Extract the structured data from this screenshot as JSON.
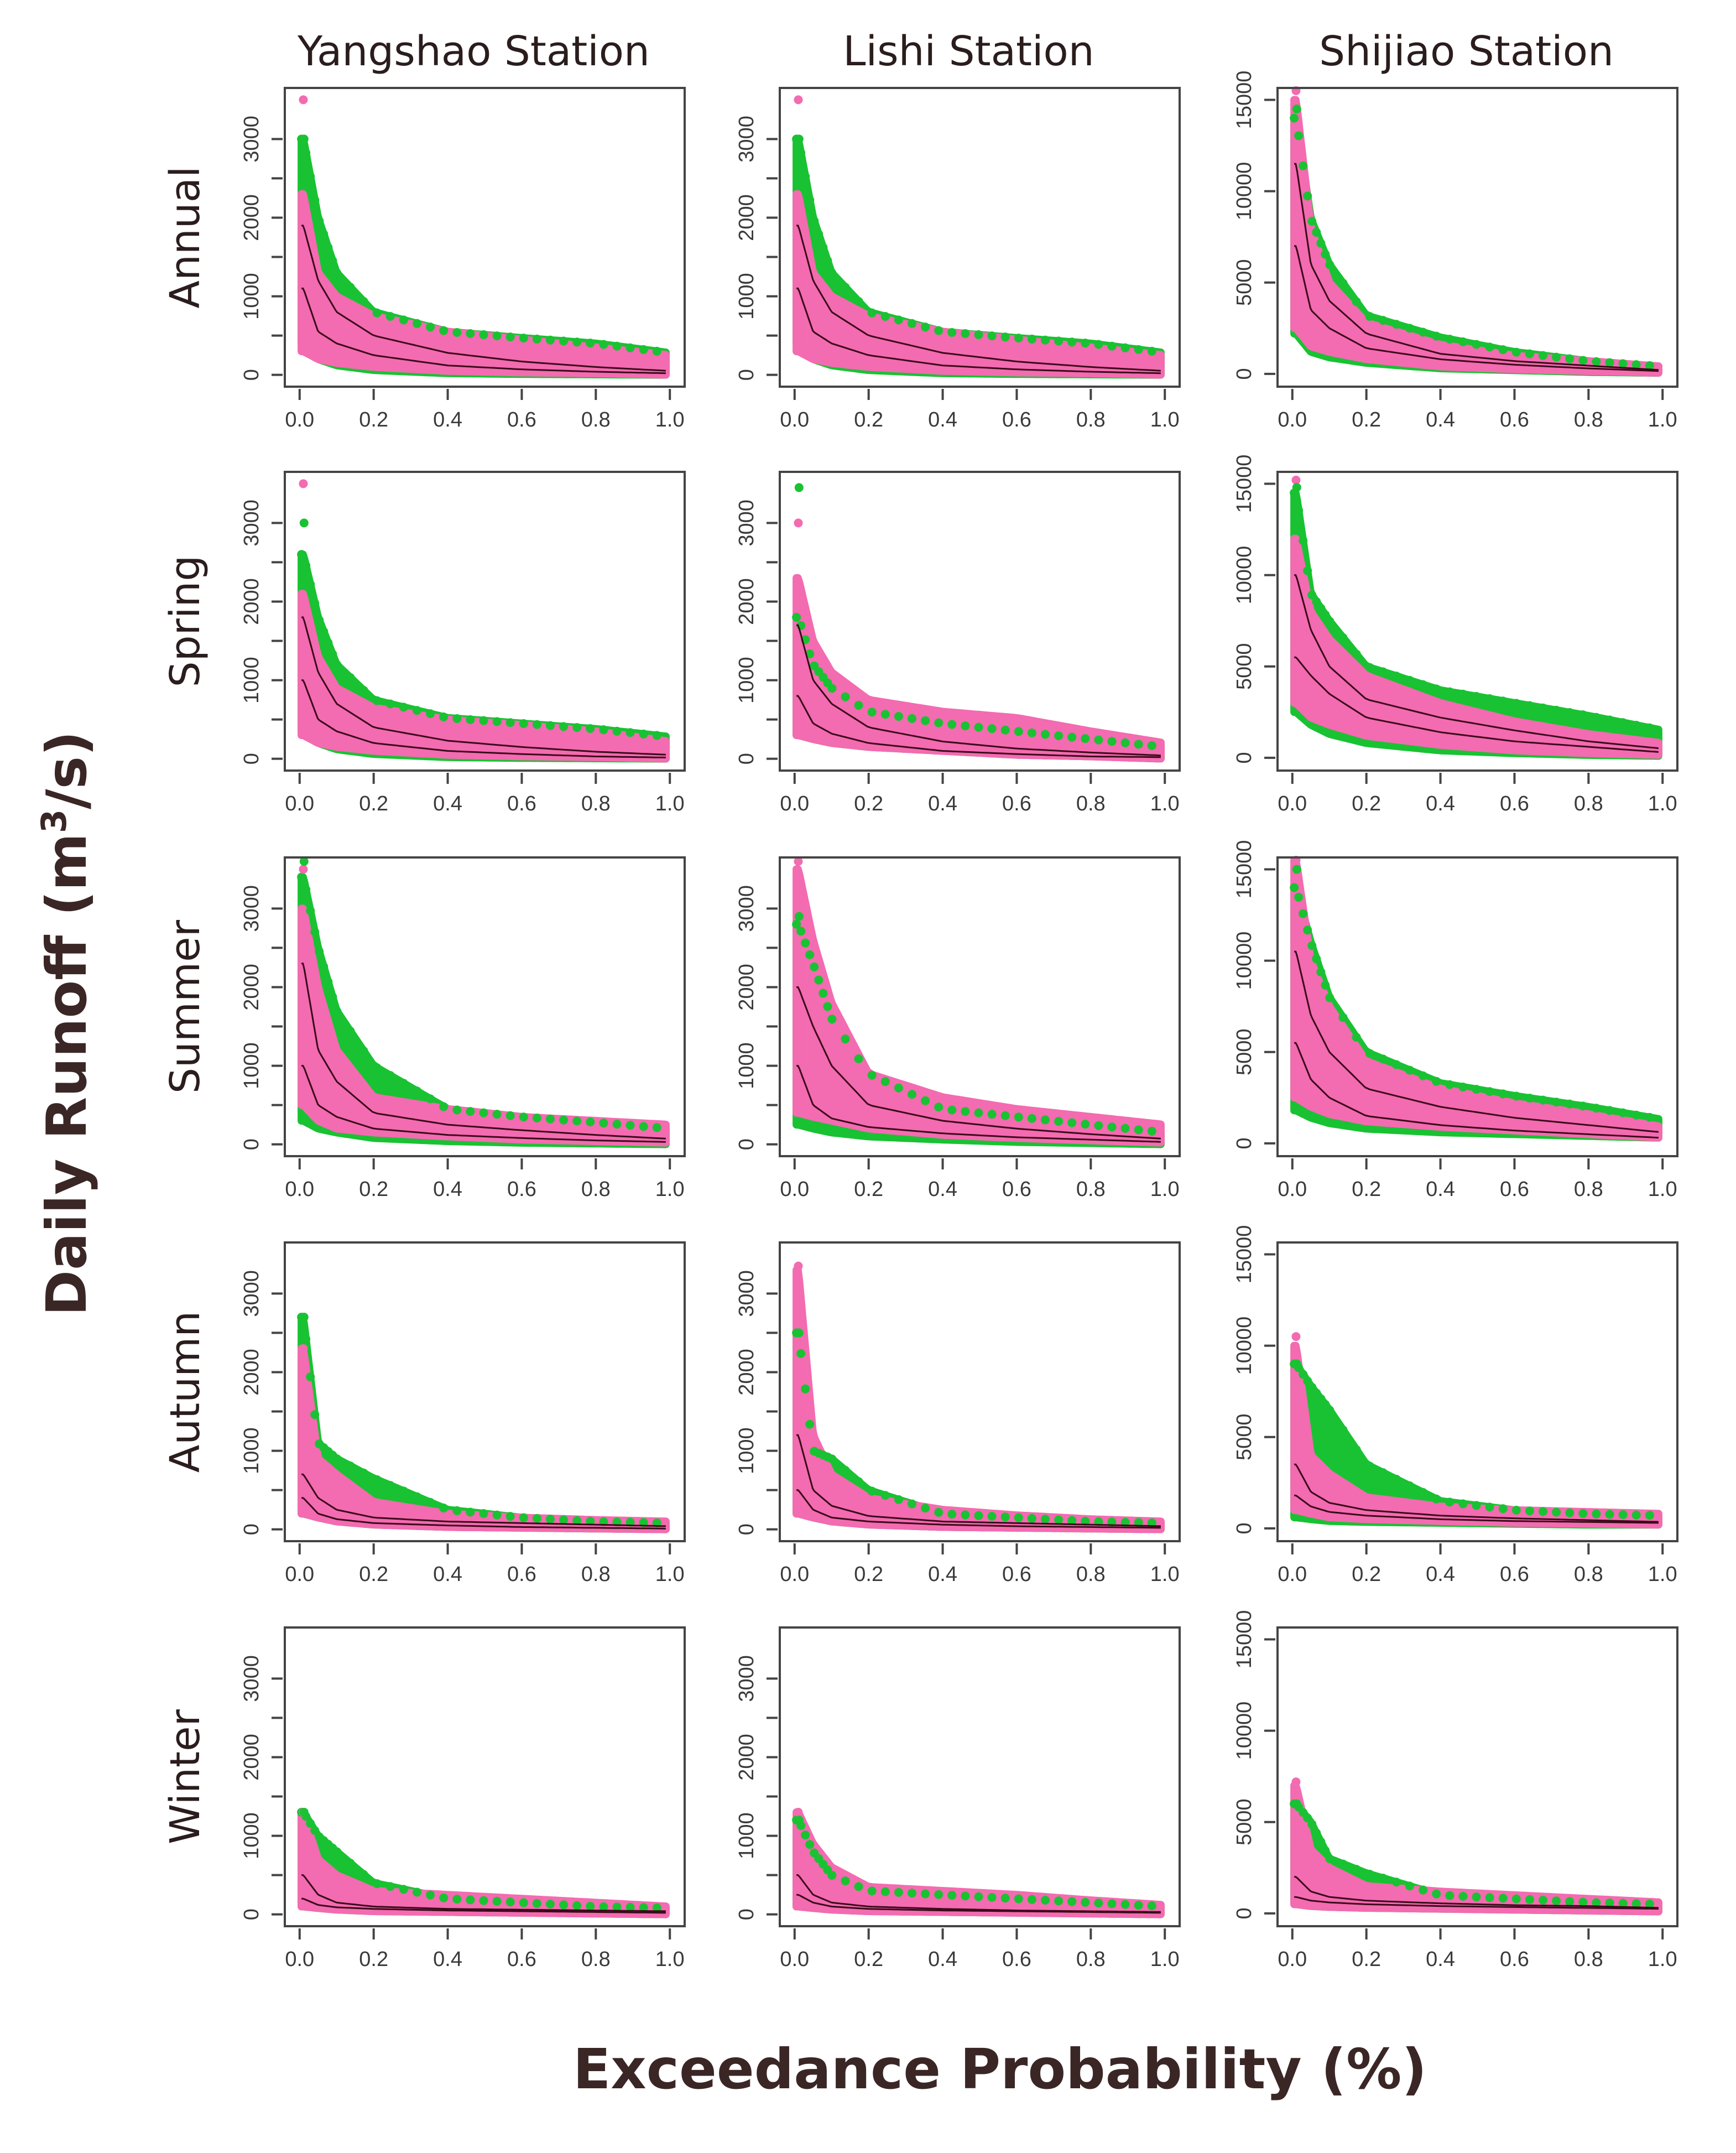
{
  "chart_data": {
    "type": "scatter",
    "xlabel": "Exceedance Probability (%)",
    "ylabel_main": "Daily Runoff (m",
    "ylabel_sup": "3",
    "ylabel_end": "/s)",
    "columns": [
      "Yangshao Station",
      "Lishi Station",
      "Shijiao Station"
    ],
    "rows": [
      "Annual",
      "Spring",
      "Summer",
      "Autumn",
      "Winter"
    ],
    "xlim": [
      -0.04,
      1.04
    ],
    "xticks": [
      "0.0",
      "0.2",
      "0.4",
      "0.6",
      "0.8",
      "1.0"
    ],
    "xtick_values": [
      0,
      0.2,
      0.4,
      0.6,
      0.8,
      1.0
    ],
    "ylims": [
      [
        -150,
        3650
      ],
      [
        -150,
        3650
      ],
      [
        -700,
        15650
      ]
    ],
    "yticks": [
      [
        "0",
        "1000",
        "2000",
        "3000"
      ],
      [
        "0",
        "1000",
        "2000",
        "3000"
      ],
      [
        "0",
        "5000",
        "10000",
        "15000"
      ]
    ],
    "ytick_values": [
      [
        0,
        1000,
        2000,
        3000
      ],
      [
        0,
        1000,
        2000,
        3000
      ],
      [
        0,
        5000,
        10000,
        15000
      ]
    ],
    "minor_ytick_values": [
      [
        500,
        1500,
        2500
      ],
      [
        500,
        1500,
        2500
      ],
      []
    ],
    "colors": {
      "green": "#19c232",
      "pink": "#f36bb0",
      "line": "#3a0a1a"
    },
    "sample_x": [
      0.01,
      0.05,
      0.1,
      0.2,
      0.4,
      0.6,
      0.8,
      1.0
    ],
    "panels": [
      [
        {
          "pink_upper": [
            2300,
            1300,
            1000,
            750,
            550,
            450,
            350,
            250
          ],
          "pink_lower": [
            300,
            200,
            150,
            100,
            50,
            30,
            20,
            0
          ],
          "green_upper": [
            3000,
            2000,
            1300,
            800,
            550,
            470,
            400,
            280
          ],
          "green_lower": [
            400,
            200,
            120,
            60,
            20,
            10,
            5,
            0
          ],
          "line_high": [
            1900,
            1200,
            800,
            500,
            280,
            170,
            100,
            50
          ],
          "line_low": [
            1100,
            550,
            400,
            250,
            120,
            70,
            40,
            20
          ],
          "peak_pink": 3500,
          "peak_green": 3000
        },
        {
          "pink_upper": [
            2300,
            1300,
            1000,
            750,
            550,
            450,
            350,
            250
          ],
          "pink_lower": [
            300,
            200,
            150,
            100,
            50,
            30,
            20,
            0
          ],
          "green_upper": [
            3000,
            2000,
            1300,
            800,
            550,
            470,
            400,
            280
          ],
          "green_lower": [
            400,
            200,
            120,
            60,
            20,
            10,
            5,
            0
          ],
          "line_high": [
            1900,
            1200,
            800,
            500,
            280,
            170,
            100,
            50
          ],
          "line_low": [
            1100,
            550,
            400,
            250,
            120,
            70,
            40,
            20
          ],
          "peak_pink": 3500,
          "peak_green": 3000
        },
        {
          "pink_upper": [
            15000,
            8000,
            5000,
            2800,
            1600,
            1000,
            700,
            400
          ],
          "pink_lower": [
            2500,
            1500,
            1200,
            800,
            400,
            250,
            150,
            50
          ],
          "green_upper": [
            14000,
            8500,
            6000,
            3200,
            2000,
            1200,
            700,
            400
          ],
          "green_lower": [
            2200,
            1200,
            900,
            600,
            300,
            200,
            100,
            50
          ],
          "line_high": [
            11500,
            6000,
            4000,
            2200,
            1100,
            700,
            450,
            200
          ],
          "line_low": [
            7000,
            3500,
            2500,
            1400,
            800,
            500,
            300,
            150
          ],
          "peak_pink": 15500,
          "peak_green": 14500
        }
      ],
      [
        {
          "pink_upper": [
            2100,
            1300,
            900,
            650,
            500,
            430,
            350,
            220
          ],
          "pink_lower": [
            300,
            200,
            150,
            100,
            50,
            30,
            20,
            0
          ],
          "green_upper": [
            2600,
            1800,
            1200,
            750,
            520,
            450,
            380,
            280
          ],
          "green_lower": [
            350,
            200,
            120,
            60,
            20,
            10,
            5,
            0
          ],
          "line_high": [
            1800,
            1100,
            700,
            400,
            230,
            150,
            90,
            50
          ],
          "line_low": [
            1000,
            500,
            350,
            200,
            100,
            60,
            30,
            15
          ],
          "peak_pink": 3500,
          "peak_green": 3000
        },
        {
          "pink_upper": [
            2300,
            1500,
            1100,
            750,
            600,
            520,
            350,
            200
          ],
          "pink_lower": [
            300,
            250,
            200,
            150,
            100,
            50,
            30,
            0
          ],
          "green_upper": [
            1800,
            1200,
            900,
            600,
            450,
            350,
            250,
            150
          ],
          "green_lower": [
            300,
            250,
            200,
            150,
            100,
            50,
            30,
            0
          ],
          "line_high": [
            1700,
            1000,
            700,
            400,
            220,
            130,
            80,
            40
          ],
          "line_low": [
            800,
            450,
            320,
            200,
            100,
            60,
            30,
            20
          ],
          "peak_pink": 3000,
          "peak_green": 3450
        },
        {
          "pink_upper": [
            12000,
            8000,
            6500,
            4500,
            3000,
            2000,
            1300,
            800
          ],
          "pink_lower": [
            3000,
            2200,
            1800,
            1200,
            700,
            400,
            250,
            150
          ],
          "green_upper": [
            14500,
            9000,
            7500,
            5000,
            3700,
            3000,
            2300,
            1500
          ],
          "green_lower": [
            2500,
            1800,
            1300,
            800,
            400,
            250,
            150,
            100
          ],
          "line_high": [
            10000,
            7000,
            5000,
            3200,
            2200,
            1500,
            900,
            500
          ],
          "line_low": [
            5500,
            4500,
            3500,
            2200,
            1400,
            900,
            600,
            300
          ],
          "peak_pink": 15200,
          "peak_green": 14800
        }
      ],
      [
        {
          "pink_upper": [
            3000,
            2000,
            1200,
            600,
            450,
            350,
            300,
            250
          ],
          "pink_lower": [
            500,
            300,
            200,
            150,
            100,
            60,
            40,
            20
          ],
          "green_upper": [
            3400,
            2500,
            1700,
            1000,
            450,
            350,
            280,
            200
          ],
          "green_lower": [
            300,
            200,
            150,
            80,
            40,
            20,
            10,
            0
          ],
          "line_high": [
            2300,
            1200,
            800,
            400,
            250,
            180,
            120,
            70
          ],
          "line_low": [
            1000,
            500,
            350,
            200,
            120,
            80,
            50,
            30
          ],
          "peak_pink": 3500,
          "peak_green": 3600
        },
        {
          "pink_upper": [
            3500,
            2600,
            1800,
            900,
            600,
            450,
            350,
            250
          ],
          "pink_lower": [
            400,
            350,
            300,
            200,
            120,
            80,
            50,
            20
          ],
          "green_upper": [
            2800,
            2300,
            1600,
            900,
            450,
            350,
            250,
            150
          ],
          "green_lower": [
            250,
            200,
            150,
            100,
            60,
            30,
            15,
            0
          ],
          "line_high": [
            2000,
            1500,
            1000,
            500,
            300,
            200,
            130,
            70
          ],
          "line_low": [
            1000,
            500,
            330,
            220,
            140,
            90,
            60,
            30
          ],
          "peak_pink": 3600,
          "peak_green": 2900
        },
        {
          "pink_upper": [
            15500,
            10000,
            7500,
            4500,
            3000,
            2200,
            1600,
            900
          ],
          "pink_lower": [
            2500,
            2000,
            1600,
            1200,
            900,
            700,
            500,
            300
          ],
          "green_upper": [
            14000,
            11000,
            8000,
            5000,
            3300,
            2600,
            2000,
            1300
          ],
          "green_lower": [
            1800,
            1400,
            1100,
            800,
            600,
            500,
            400,
            300
          ],
          "line_high": [
            10500,
            7000,
            5000,
            3000,
            2000,
            1400,
            1000,
            600
          ],
          "line_low": [
            5500,
            3500,
            2500,
            1500,
            1000,
            700,
            500,
            300
          ],
          "peak_pink": 15500,
          "peak_green": 15000
        }
      ],
      [
        {
          "pink_upper": [
            2300,
            900,
            700,
            350,
            200,
            150,
            120,
            100
          ],
          "pink_lower": [
            200,
            150,
            100,
            60,
            30,
            20,
            10,
            0
          ],
          "green_upper": [
            2700,
            1100,
            900,
            650,
            250,
            150,
            100,
            80
          ],
          "green_lower": [
            200,
            150,
            100,
            60,
            30,
            20,
            10,
            0
          ],
          "line_high": [
            700,
            400,
            250,
            150,
            100,
            80,
            60,
            40
          ],
          "line_low": [
            400,
            200,
            130,
            80,
            50,
            30,
            20,
            10
          ],
          "peak_pink": 2300,
          "peak_green": 2700
        },
        {
          "pink_upper": [
            3300,
            1200,
            700,
            400,
            250,
            180,
            130,
            100
          ],
          "pink_lower": [
            200,
            150,
            100,
            60,
            30,
            20,
            10,
            0
          ],
          "green_upper": [
            2500,
            1000,
            900,
            500,
            200,
            150,
            100,
            80
          ],
          "green_lower": [
            200,
            150,
            100,
            60,
            30,
            20,
            10,
            0
          ],
          "line_high": [
            1200,
            500,
            300,
            170,
            100,
            80,
            60,
            40
          ],
          "line_low": [
            500,
            250,
            150,
            100,
            60,
            40,
            30,
            20
          ],
          "peak_pink": 3350,
          "peak_green": 2500
        },
        {
          "pink_upper": [
            10000,
            4000,
            3000,
            1700,
            1200,
            1000,
            900,
            800
          ],
          "pink_lower": [
            1000,
            800,
            600,
            500,
            400,
            300,
            250,
            200
          ],
          "green_upper": [
            9000,
            7800,
            6500,
            3500,
            1500,
            1000,
            800,
            700
          ],
          "green_lower": [
            600,
            500,
            400,
            350,
            300,
            250,
            200,
            200
          ],
          "line_high": [
            3500,
            2000,
            1400,
            1000,
            700,
            550,
            450,
            350
          ],
          "line_low": [
            1800,
            1200,
            900,
            700,
            500,
            400,
            350,
            300
          ],
          "peak_pink": 10500,
          "peak_green": 9000
        }
      ],
      [
        {
          "pink_upper": [
            1300,
            700,
            500,
            300,
            250,
            200,
            150,
            100
          ],
          "pink_lower": [
            100,
            80,
            60,
            40,
            30,
            20,
            10,
            0
          ],
          "green_upper": [
            1300,
            1000,
            800,
            400,
            200,
            150,
            100,
            80
          ],
          "green_lower": [
            100,
            80,
            60,
            40,
            30,
            20,
            10,
            0
          ],
          "line_high": [
            500,
            250,
            150,
            100,
            70,
            60,
            50,
            40
          ],
          "line_low": [
            200,
            120,
            90,
            70,
            50,
            40,
            30,
            20
          ],
          "peak_pink": 1300,
          "peak_green": 1300
        },
        {
          "pink_upper": [
            1300,
            900,
            600,
            350,
            300,
            250,
            180,
            120
          ],
          "pink_lower": [
            100,
            80,
            60,
            40,
            30,
            20,
            10,
            0
          ],
          "green_upper": [
            1200,
            800,
            500,
            300,
            250,
            200,
            150,
            100
          ],
          "green_lower": [
            100,
            80,
            60,
            40,
            30,
            20,
            10,
            0
          ],
          "line_high": [
            500,
            250,
            150,
            100,
            70,
            50,
            40,
            30
          ],
          "line_low": [
            250,
            150,
            100,
            70,
            50,
            40,
            30,
            20
          ],
          "peak_pink": 1300,
          "peak_green": 1200
        },
        {
          "pink_upper": [
            7000,
            3500,
            2500,
            1500,
            1200,
            1000,
            800,
            600
          ],
          "pink_lower": [
            500,
            400,
            350,
            300,
            250,
            200,
            150,
            100
          ],
          "green_upper": [
            6000,
            5000,
            3000,
            2200,
            1000,
            800,
            600,
            500
          ],
          "green_lower": [
            500,
            400,
            350,
            300,
            250,
            200,
            150,
            100
          ],
          "line_high": [
            2000,
            1200,
            900,
            700,
            550,
            450,
            400,
            300
          ],
          "line_low": [
            900,
            700,
            600,
            500,
            400,
            350,
            300,
            250
          ],
          "peak_pink": 7200,
          "peak_green": 6000
        }
      ]
    ]
  }
}
